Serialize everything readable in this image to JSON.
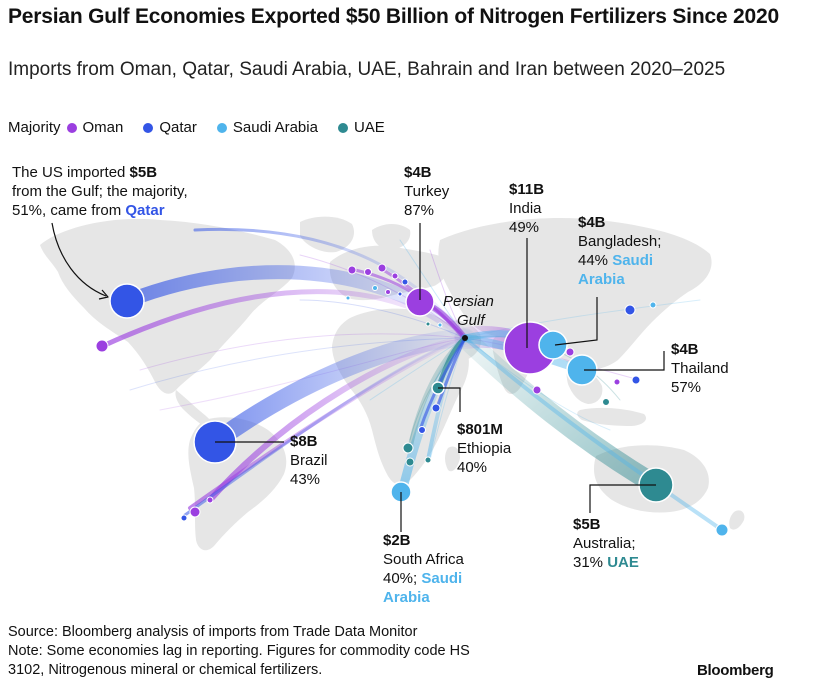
{
  "title": "Persian Gulf Economies Exported $50 Billion of Nitrogen Fertilizers Since 2020",
  "subtitle": "Imports from Oman, Qatar, Saudi Arabia, UAE, Bahrain and Iran between 2020–2025",
  "legend": {
    "label": "Majority",
    "items": [
      {
        "name": "Oman",
        "color": "#9b3fe0"
      },
      {
        "name": "Qatar",
        "color": "#3355e6"
      },
      {
        "name": "Saudi Arabia",
        "color": "#4fb4ec"
      },
      {
        "name": "UAE",
        "color": "#2e8a91"
      }
    ]
  },
  "origin_label": {
    "line1": "Persian",
    "line2": "Gulf"
  },
  "annotations": {
    "us": {
      "prefix": "The US imported ",
      "amount": "$5B",
      "line2": "from the Gulf; the majority,",
      "line3_prefix": "51%, came from ",
      "country": "Qatar"
    },
    "turkey": {
      "amount": "$4B",
      "country": "Turkey",
      "share": "87%"
    },
    "india": {
      "amount": "$11B",
      "country": "India",
      "share": "49%"
    },
    "bangladesh": {
      "amount": "$4B",
      "country": "Bangladesh;",
      "share": "44%",
      "majority1": "Saudi",
      "majority2": "Arabia"
    },
    "thailand": {
      "amount": "$4B",
      "country": "Thailand",
      "share": "57%"
    },
    "brazil": {
      "amount": "$8B",
      "country": "Brazil",
      "share": "43%"
    },
    "ethiopia": {
      "amount": "$801M",
      "country": "Ethiopia",
      "share": "40%"
    },
    "south_africa": {
      "amount": "$2B",
      "country": "South Africa",
      "share": "40%;",
      "majority1": "Saudi",
      "majority2": "Arabia"
    },
    "australia": {
      "amount": "$5B",
      "country": "Australia;",
      "share": "31%",
      "majority": "UAE"
    }
  },
  "source": {
    "line1": "Source: Bloomberg analysis of imports from Trade Data Monitor",
    "line2": "Note: Some economies lag in reporting. Figures for commodity code HS",
    "line3": "3102, Nitrogenous mineral or chemical fertilizers."
  },
  "brand": "Bloomberg"
}
